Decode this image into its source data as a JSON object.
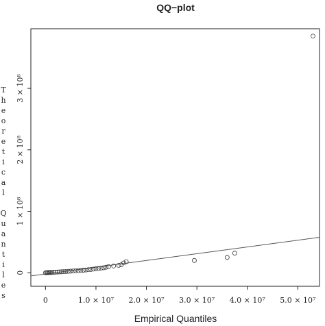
{
  "chart_data": {
    "type": "scatter",
    "title": "QQ−plot",
    "x_label": "Empirical Quantiles",
    "y_label": "Theoretical Quantiles",
    "x": [
      0,
      200000,
      400000,
      600000,
      800000,
      1000000,
      1300000,
      1600000,
      2000000,
      2400000,
      2800000,
      3200000,
      3600000,
      4000000,
      4500000,
      5000000,
      5500000,
      6000000,
      6500000,
      7000000,
      7500000,
      8000000,
      8500000,
      9000000,
      9500000,
      10000000,
      10500000,
      11000000,
      11500000,
      12000000,
      12500000,
      13500000,
      14500000,
      15000000,
      15500000,
      16000000,
      29500000,
      36000000,
      37500000,
      53000000
    ],
    "values": [
      0,
      100000,
      200000,
      300000,
      400000,
      500000,
      600000,
      800000,
      1000000,
      1200000,
      1400000,
      1600000,
      1800000,
      2000000,
      2300000,
      2600000,
      2900000,
      3200000,
      3500000,
      3800000,
      4100000,
      4500000,
      5000000,
      5400000,
      6000000,
      6500000,
      7000000,
      7500000,
      8000000,
      9000000,
      10000000,
      11000000,
      12000000,
      13000000,
      16000000,
      18000000,
      20000000,
      25000000,
      32000000,
      385000000
    ],
    "color": "#333333",
    "reference_line": {
      "intercept": -2000000,
      "slope": 1.1,
      "color": "#555555"
    },
    "xlim": [
      -2900000,
      54300000
    ],
    "ylim": [
      -22000000,
      397000000
    ],
    "xticks": [
      0,
      {
        "value": 10000000,
        "label": "1.0 × 10⁷"
      },
      {
        "value": 20000000,
        "label": "2.0 × 10⁷"
      },
      {
        "value": 30000000,
        "label": "3.0 × 10⁷"
      },
      {
        "value": 40000000,
        "label": "4.0 × 10⁷"
      },
      {
        "value": 50000000,
        "label": "5.0 × 10⁷"
      }
    ],
    "yticks": [
      0,
      {
        "value": 100000000,
        "label": "1 × 10⁸"
      },
      {
        "value": 200000000,
        "label": "2 × 10⁸"
      },
      {
        "value": 300000000,
        "label": "3 × 10⁸"
      }
    ]
  }
}
